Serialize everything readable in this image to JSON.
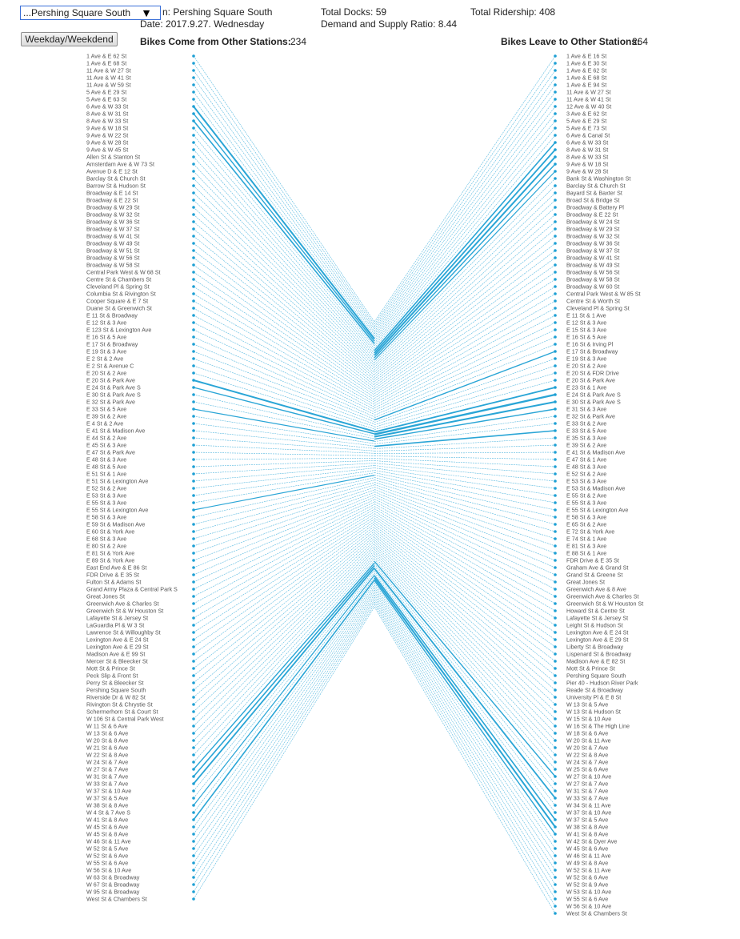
{
  "controls": {
    "station_select_value": "...Pershing Square South",
    "toggle_label": "Weekday/Weekdend"
  },
  "header": {
    "station_text": "n: Pershing Square South",
    "date_text": "Date: 2017.9.27. Wednesday",
    "total_docks": "Total Docks: 59",
    "ratio": "Demand and Supply Ratio: 8.44",
    "total_ridership": "Total Ridership: 408",
    "incoming_label": "Bikes Come from Other Stations:",
    "incoming_count": "234",
    "outgoing_label": "Bikes Leave to Other Stations:",
    "outgoing_count": "264"
  },
  "colors": {
    "flow": "#1ea0d4",
    "dot": "#1ea0d4"
  },
  "incoming_stations": [
    "1 Ave & E 62 St",
    "1 Ave & E 68 St",
    "11 Ave & W 27 St",
    "11 Ave & W 41 St",
    "11 Ave & W 59 St",
    "5 Ave & E 29 St",
    "5 Ave & E 63 St",
    "6 Ave & W 33 St",
    "8 Ave & W 31 St",
    "8 Ave & W 33 St",
    "9 Ave & W 18 St",
    "9 Ave & W 22 St",
    "9 Ave & W 28 St",
    "9 Ave & W 45 St",
    "Allen St & Stanton St",
    "Amsterdam Ave & W 73 St",
    "Avenue D & E 12 St",
    "Barclay St & Church St",
    "Barrow St & Hudson St",
    "Broadway & E 14 St",
    "Broadway & E 22 St",
    "Broadway & W 29 St",
    "Broadway & W 32 St",
    "Broadway & W 36 St",
    "Broadway & W 37 St",
    "Broadway & W 41 St",
    "Broadway & W 49 St",
    "Broadway & W 51 St",
    "Broadway & W 56 St",
    "Broadway & W 58 St",
    "Central Park West & W 68 St",
    "Centre St & Chambers St",
    "Cleveland Pl & Spring St",
    "Columbia St & Rivington St",
    "Cooper Square & E 7 St",
    "Duane St & Greenwich St",
    "E 11 St & Broadway",
    "E 12 St & 3 Ave",
    "E 123 St & Lexington Ave",
    "E 16 St & 5 Ave",
    "E 17 St & Broadway",
    "E 19 St & 3 Ave",
    "E 2 St & 2 Ave",
    "E 2 St & Avenue C",
    "E 20 St & 2 Ave",
    "E 20 St & Park Ave",
    "E 24 St & Park Ave S",
    "E 30 St & Park Ave S",
    "E 32 St & Park Ave",
    "E 33 St & 5 Ave",
    "E 39 St & 2 Ave",
    "E 4 St & 2 Ave",
    "E 41 St & Madison Ave",
    "E 44 St & 2 Ave",
    "E 45 St & 3 Ave",
    "E 47 St & Park Ave",
    "E 48 St & 3 Ave",
    "E 48 St & 5 Ave",
    "E 51 St & 1 Ave",
    "E 51 St & Lexington Ave",
    "E 52 St & 2 Ave",
    "E 53 St & 3 Ave",
    "E 55 St & 3 Ave",
    "E 55 St & Lexington Ave",
    "E 58 St & 3 Ave",
    "E 59 St & Madison Ave",
    "E 60 St & York Ave",
    "E 68 St & 3 Ave",
    "E 80 St & 2 Ave",
    "E 81 St & York Ave",
    "E 89 St & York Ave",
    "East End Ave & E 86 St",
    "FDR Drive & E 35 St",
    "Fulton St & Adams St",
    "Grand Army Plaza & Central Park S",
    "Great Jones St",
    "Greenwich Ave & Charles St",
    "Greenwich St & W Houston St",
    "Lafayette St & Jersey St",
    "LaGuardia Pl & W 3 St",
    "Lawrence St & Willoughby St",
    "Lexington Ave & E 24 St",
    "Lexington Ave & E 29 St",
    "Madison Ave & E 99 St",
    "Mercer St & Bleecker St",
    "Mott St & Prince St",
    "Peck Slip & Front St",
    "Perry St & Bleecker St",
    "Pershing Square South",
    "Riverside Dr & W 82 St",
    "Rivington St & Chrystie St",
    "Schermerhorn St & Court St",
    "W 106 St & Central Park West",
    "W 11 St & 6 Ave",
    "W 13 St & 6 Ave",
    "W 20 St & 8 Ave",
    "W 21 St & 6 Ave",
    "W 22 St & 8 Ave",
    "W 24 St & 7 Ave",
    "W 27 St & 7 Ave",
    "W 31 St & 7 Ave",
    "W 33 St & 7 Ave",
    "W 37 St & 10 Ave",
    "W 37 St & 5 Ave",
    "W 38 St & 8 Ave",
    "W 4 St & 7 Ave S",
    "W 41 St & 8 Ave",
    "W 45 St & 6 Ave",
    "W 45 St & 8 Ave",
    "W 46 St & 11 Ave",
    "W 52 St & 5 Ave",
    "W 52 St & 6 Ave",
    "W 55 St & 6 Ave",
    "W 56 St & 10 Ave",
    "W 63 St & Broadway",
    "W 67 St & Broadway",
    "W 95 St & Broadway",
    "West St & Chambers St"
  ],
  "outgoing_stations": [
    "1 Ave & E 16 St",
    "1 Ave & E 30 St",
    "1 Ave & E 62 St",
    "1 Ave & E 68 St",
    "1 Ave & E 94 St",
    "11 Ave & W 27 St",
    "11 Ave & W 41 St",
    "12 Ave & W 40 St",
    "3 Ave & E 62 St",
    "5 Ave & E 29 St",
    "5 Ave & E 73 St",
    "6 Ave & Canal St",
    "6 Ave & W 33 St",
    "8 Ave & W 31 St",
    "8 Ave & W 33 St",
    "9 Ave & W 18 St",
    "9 Ave & W 28 St",
    "Bank St & Washington St",
    "Barclay St & Church St",
    "Bayard St & Baxter St",
    "Broad St & Bridge St",
    "Broadway & Battery Pl",
    "Broadway & E 22 St",
    "Broadway & W 24 St",
    "Broadway & W 29 St",
    "Broadway & W 32 St",
    "Broadway & W 36 St",
    "Broadway & W 37 St",
    "Broadway & W 41 St",
    "Broadway & W 49 St",
    "Broadway & W 56 St",
    "Broadway & W 58 St",
    "Broadway & W 60 St",
    "Central Park West & W 85 St",
    "Centre St & Worth St",
    "Cleveland Pl & Spring St",
    "E 11 St & 1 Ave",
    "E 12 St & 3 Ave",
    "E 15 St & 3 Ave",
    "E 16 St & 5 Ave",
    "E 16 St & Irving Pl",
    "E 17 St & Broadway",
    "E 19 St & 3 Ave",
    "E 20 St & 2 Ave",
    "E 20 St & FDR Drive",
    "E 20 St & Park Ave",
    "E 23 St & 1 Ave",
    "E 24 St & Park Ave S",
    "E 30 St & Park Ave S",
    "E 31 St & 3 Ave",
    "E 32 St & Park Ave",
    "E 33 St & 2 Ave",
    "E 33 St & 5 Ave",
    "E 35 St & 3 Ave",
    "E 39 St & 2 Ave",
    "E 41 St & Madison Ave",
    "E 47 St & 1 Ave",
    "E 48 St & 3 Ave",
    "E 52 St & 2 Ave",
    "E 53 St & 3 Ave",
    "E 53 St & Madison Ave",
    "E 55 St & 2 Ave",
    "E 55 St & 3 Ave",
    "E 55 St & Lexington Ave",
    "E 58 St & 3 Ave",
    "E 65 St & 2 Ave",
    "E 72 St & York Ave",
    "E 74 St & 1 Ave",
    "E 81 St & 3 Ave",
    "E 88 St & 1 Ave",
    "FDR Drive & E 35 St",
    "Graham Ave & Grand St",
    "Grand St & Greene St",
    "Great Jones St",
    "Greenwich Ave & 8 Ave",
    "Greenwich Ave & Charles St",
    "Greenwich St & W Houston St",
    "Howard St & Centre St",
    "Lafayette St & Jersey St",
    "Leight St & Hudson St",
    "Lexington Ave & E 24 St",
    "Lexington Ave & E 29 St",
    "Liberty St & Broadway",
    "Lispenard St & Broadway",
    "Madison Ave & E 82 St",
    "Mott St & Prince St",
    "Pershing Square South",
    "Pier 40 - Hudson River Park",
    "Reade St & Broadway",
    "University Pl & E 8 St",
    "W 13 St & 5 Ave",
    "W 13 St & Hudson St",
    "W 15 St & 10 Ave",
    "W 16 St & The High Line",
    "W 18 St & 6 Ave",
    "W 20 St & 11 Ave",
    "W 20 St & 7 Ave",
    "W 22 St & 8 Ave",
    "W 24 St & 7 Ave",
    "W 25 St & 6 Ave",
    "W 27 St & 10 Ave",
    "W 27 St & 7 Ave",
    "W 31 St & 7 Ave",
    "W 33 St & 7 Ave",
    "W 34 St & 11 Ave",
    "W 37 St & 10 Ave",
    "W 37 St & 5 Ave",
    "W 38 St & 8 Ave",
    "W 41 St & 8 Ave",
    "W 42 St & Dyer Ave",
    "W 45 St & 6 Ave",
    "W 46 St & 11 Ave",
    "W 49 St & 8 Ave",
    "W 52 St & 11 Ave",
    "W 52 St & 6 Ave",
    "W 52 St & 9 Ave",
    "W 53 St & 10 Ave",
    "W 55 St & 6 Ave",
    "W 56 St & 10 Ave",
    "West St & Chambers St"
  ]
}
